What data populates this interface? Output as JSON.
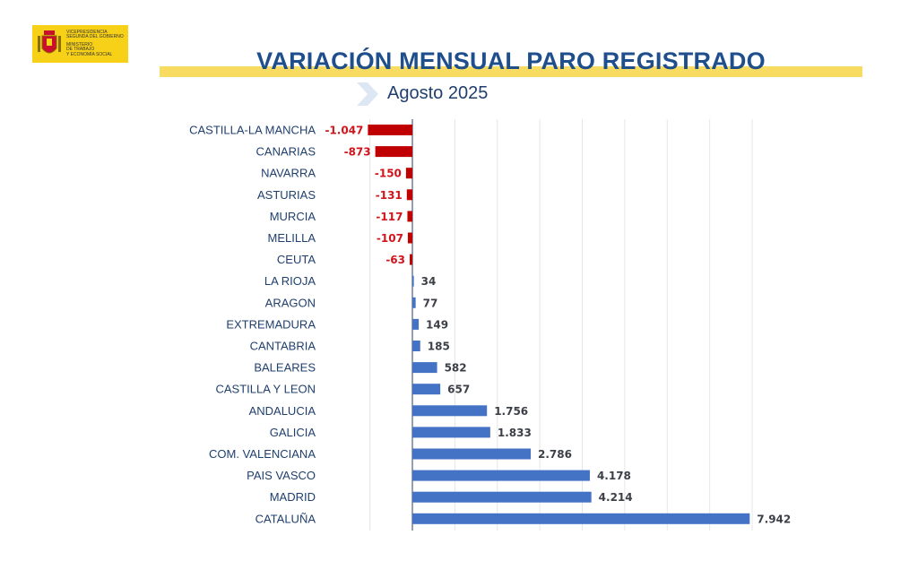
{
  "header": {
    "logo_lines": [
      "Vicepresidencia",
      "Segunda del Gobierno",
      "Ministerio",
      "de Trabajo",
      "y Economía Social"
    ],
    "title": "VARIACIÓN MENSUAL PARO REGISTRADO",
    "subtitle": "Agosto 2025"
  },
  "colors": {
    "negative": "#c00000",
    "positive": "#4472c4",
    "title": "#1f4e8c",
    "band": "#f7dc61",
    "grid": "#e6e6e6"
  },
  "chart_data": {
    "type": "bar",
    "orientation": "horizontal",
    "title": "VARIACIÓN MENSUAL PARO REGISTRADO",
    "subtitle": "Agosto 2025",
    "xlabel": "",
    "ylabel": "",
    "grid": true,
    "xlim": [
      -1000,
      8000
    ],
    "categories": [
      "CASTILLA-LA MANCHA",
      "CANARIAS",
      "NAVARRA",
      "ASTURIAS",
      "MURCIA",
      "MELILLA",
      "CEUTA",
      "LA RIOJA",
      "ARAGON",
      "EXTREMADURA",
      "CANTABRIA",
      "BALEARES",
      "CASTILLA Y LEON",
      "ANDALUCIA",
      "GALICIA",
      "COM. VALENCIANA",
      "PAIS VASCO",
      "MADRID",
      "CATALUÑA"
    ],
    "values": [
      -1047,
      -873,
      -150,
      -131,
      -117,
      -107,
      -63,
      34,
      77,
      149,
      185,
      582,
      657,
      1756,
      1833,
      2786,
      4178,
      4214,
      7942
    ],
    "value_labels": [
      "-1.047",
      "-873",
      "-150",
      "-131",
      "-117",
      "-107",
      "-63",
      "34",
      "77",
      "149",
      "185",
      "582",
      "657",
      "1.756",
      "1.833",
      "2.786",
      "4.178",
      "4.214",
      "7.942"
    ]
  }
}
